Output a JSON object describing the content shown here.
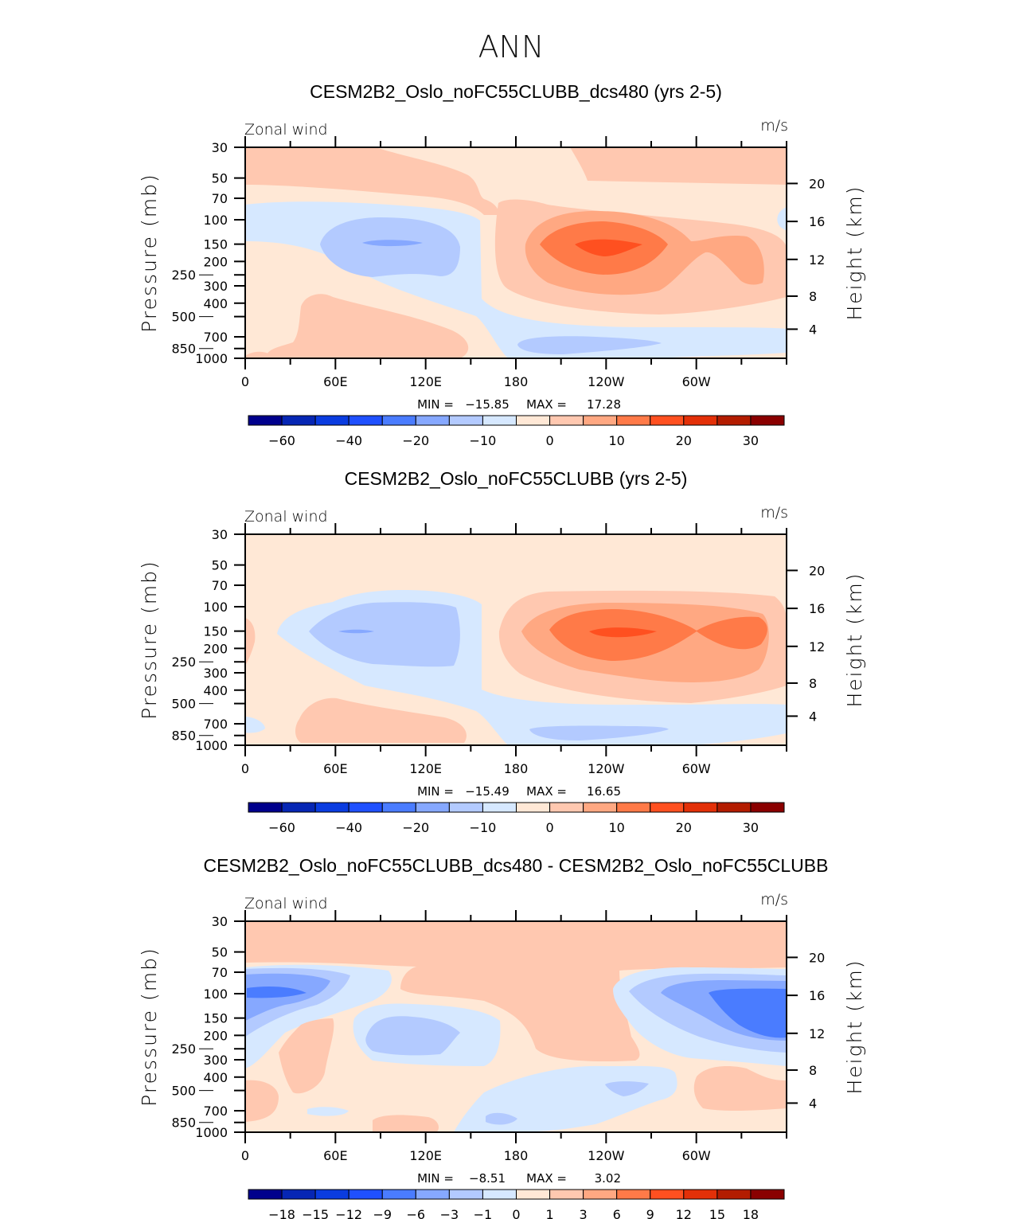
{
  "main_title": "ANN",
  "colors": [
    "#00008c",
    "#0626b4",
    "#0a3ce0",
    "#1f50ff",
    "#4a7cff",
    "#86a8ff",
    "#b3caff",
    "#d6e8ff",
    "#ffe8d6",
    "#ffc8b0",
    "#ffa882",
    "#ff7a48",
    "#ff5020",
    "#e33008",
    "#b31c00",
    "#8a0000"
  ],
  "chart_data": [
    {
      "type": "heatmap",
      "title": "CESM2B2_Oslo_noFC55CLUBB_dcs480 (yrs 2-5)",
      "left_label": "Zonal wind",
      "units": "m/s",
      "ylabel": "Pressure (mb)",
      "ylabel_right": "Height (km)",
      "xticks": [
        "0",
        "60E",
        "120E",
        "180",
        "120W",
        "60W"
      ],
      "yticks": [
        30,
        50,
        70,
        100,
        150,
        200,
        250,
        300,
        400,
        500,
        700,
        850,
        1000
      ],
      "yticks_right": [
        20,
        16,
        12,
        8,
        4
      ],
      "min_label": "MIN =",
      "min": "−15.85",
      "max_label": "MAX =",
      "max": "17.28",
      "colorbar_labels": [
        "−60",
        "−40",
        "−20",
        "−10",
        "0",
        "10",
        "20",
        "30"
      ],
      "levels": [
        -60,
        -50,
        -40,
        -30,
        -20,
        -15,
        -10,
        -5,
        0,
        5,
        10,
        15,
        20,
        25,
        30
      ]
    },
    {
      "type": "heatmap",
      "title": "CESM2B2_Oslo_noFC55CLUBB (yrs 2-5)",
      "left_label": "Zonal wind",
      "units": "m/s",
      "ylabel": "Pressure (mb)",
      "ylabel_right": "Height (km)",
      "xticks": [
        "0",
        "60E",
        "120E",
        "180",
        "120W",
        "60W"
      ],
      "yticks": [
        30,
        50,
        70,
        100,
        150,
        200,
        250,
        300,
        400,
        500,
        700,
        850,
        1000
      ],
      "yticks_right": [
        20,
        16,
        12,
        8,
        4
      ],
      "min_label": "MIN =",
      "min": "−15.49",
      "max_label": "MAX =",
      "max": "16.65",
      "colorbar_labels": [
        "−60",
        "−40",
        "−20",
        "−10",
        "0",
        "10",
        "20",
        "30"
      ],
      "levels": [
        -60,
        -50,
        -40,
        -30,
        -20,
        -15,
        -10,
        -5,
        0,
        5,
        10,
        15,
        20,
        25,
        30
      ]
    },
    {
      "type": "heatmap",
      "title": "CESM2B2_Oslo_noFC55CLUBB_dcs480 - CESM2B2_Oslo_noFC55CLUBB",
      "left_label": "Zonal wind",
      "units": "m/s",
      "ylabel": "Pressure (mb)",
      "ylabel_right": "Height (km)",
      "xticks": [
        "0",
        "60E",
        "120E",
        "180",
        "120W",
        "60W"
      ],
      "yticks": [
        30,
        50,
        70,
        100,
        150,
        200,
        250,
        300,
        400,
        500,
        700,
        850,
        1000
      ],
      "yticks_right": [
        20,
        16,
        12,
        8,
        4
      ],
      "min_label": "MIN =",
      "min": "−8.51",
      "max_label": "MAX =",
      "max": "3.02",
      "colorbar_labels": [
        "−18",
        "−15",
        "−12",
        "−9",
        "−6",
        "−3",
        "−1",
        "0",
        "1",
        "3",
        "6",
        "9",
        "12",
        "15",
        "18"
      ],
      "levels": [
        -18,
        -15,
        -12,
        -9,
        -6,
        -3,
        -1,
        0,
        1,
        3,
        6,
        9,
        12,
        15,
        18
      ]
    }
  ]
}
